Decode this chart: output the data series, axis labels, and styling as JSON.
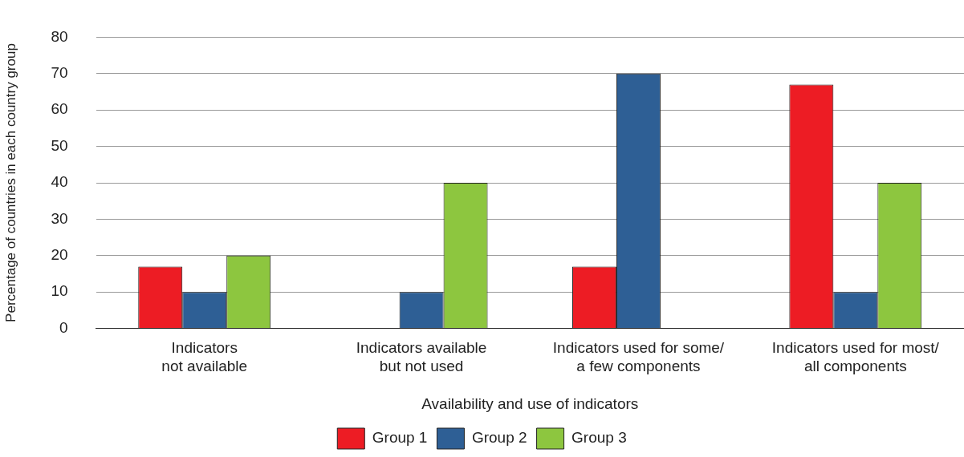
{
  "chart_data": {
    "type": "bar",
    "xlabel": "Availability and use of indicators",
    "ylabel": "Percentage of countries in each country group",
    "categories": [
      "Indicators\nnot available",
      "Indicators available\nbut not used",
      "Indicators used for some/\na few components",
      "Indicators used for most/\nall components"
    ],
    "series": [
      {
        "name": "Group 1",
        "color": "#ed1c24",
        "values": [
          17,
          0,
          17,
          67
        ]
      },
      {
        "name": "Group 2",
        "color": "#2e5f95",
        "values": [
          10,
          10,
          70,
          10
        ]
      },
      {
        "name": "Group 3",
        "color": "#8dc63f",
        "values": [
          20,
          40,
          0,
          40
        ]
      }
    ],
    "ylim": [
      0,
      80
    ],
    "yticks": [
      0,
      10,
      20,
      30,
      40,
      50,
      60,
      70,
      80
    ],
    "grid": "y",
    "legend": "bottom"
  }
}
